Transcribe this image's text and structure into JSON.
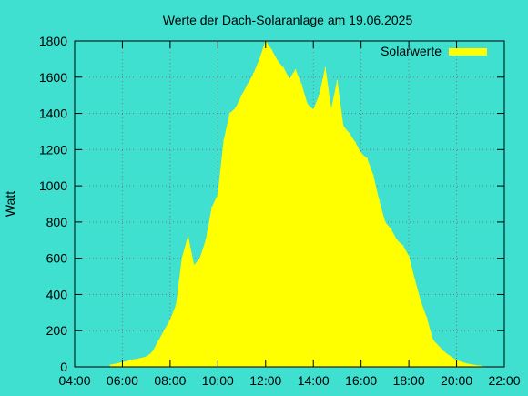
{
  "chart_data": {
    "type": "area",
    "title": "Werte der Dach-Solaranlage am 19.06.2025",
    "xlabel": "",
    "ylabel": "Watt",
    "xlim": [
      "04:00",
      "22:00"
    ],
    "ylim": [
      0,
      1800
    ],
    "x_ticks": [
      "04:00",
      "06:00",
      "08:00",
      "10:00",
      "12:00",
      "14:00",
      "16:00",
      "18:00",
      "20:00",
      "22:00"
    ],
    "y_ticks": [
      0,
      200,
      400,
      600,
      800,
      1000,
      1200,
      1400,
      1600,
      1800
    ],
    "grid": true,
    "legend_position": "top-right",
    "series": [
      {
        "name": "Solarwerte",
        "color": "#FFFF00",
        "x": [
          "05:30",
          "06:00",
          "06:30",
          "07:00",
          "07:15",
          "07:30",
          "07:45",
          "08:00",
          "08:15",
          "08:30",
          "08:45",
          "09:00",
          "09:15",
          "09:30",
          "09:45",
          "10:00",
          "10:15",
          "10:30",
          "10:45",
          "11:00",
          "11:15",
          "11:30",
          "11:45",
          "12:00",
          "12:15",
          "12:30",
          "12:45",
          "13:00",
          "13:15",
          "13:30",
          "13:45",
          "14:00",
          "14:15",
          "14:30",
          "14:45",
          "15:00",
          "15:15",
          "15:30",
          "15:45",
          "16:00",
          "16:15",
          "16:30",
          "16:45",
          "17:00",
          "17:15",
          "17:30",
          "17:45",
          "18:00",
          "18:15",
          "18:30",
          "18:45",
          "19:00",
          "19:30",
          "20:00",
          "20:30",
          "21:00",
          "21:10"
        ],
        "y": [
          10,
          25,
          40,
          55,
          80,
          140,
          200,
          260,
          340,
          600,
          720,
          560,
          600,
          700,
          880,
          950,
          1250,
          1400,
          1430,
          1500,
          1560,
          1620,
          1700,
          1800,
          1750,
          1690,
          1650,
          1590,
          1640,
          1560,
          1450,
          1420,
          1500,
          1650,
          1420,
          1580,
          1330,
          1290,
          1240,
          1180,
          1150,
          1060,
          920,
          800,
          760,
          700,
          670,
          610,
          480,
          360,
          270,
          150,
          80,
          35,
          15,
          5,
          0
        ]
      }
    ]
  }
}
